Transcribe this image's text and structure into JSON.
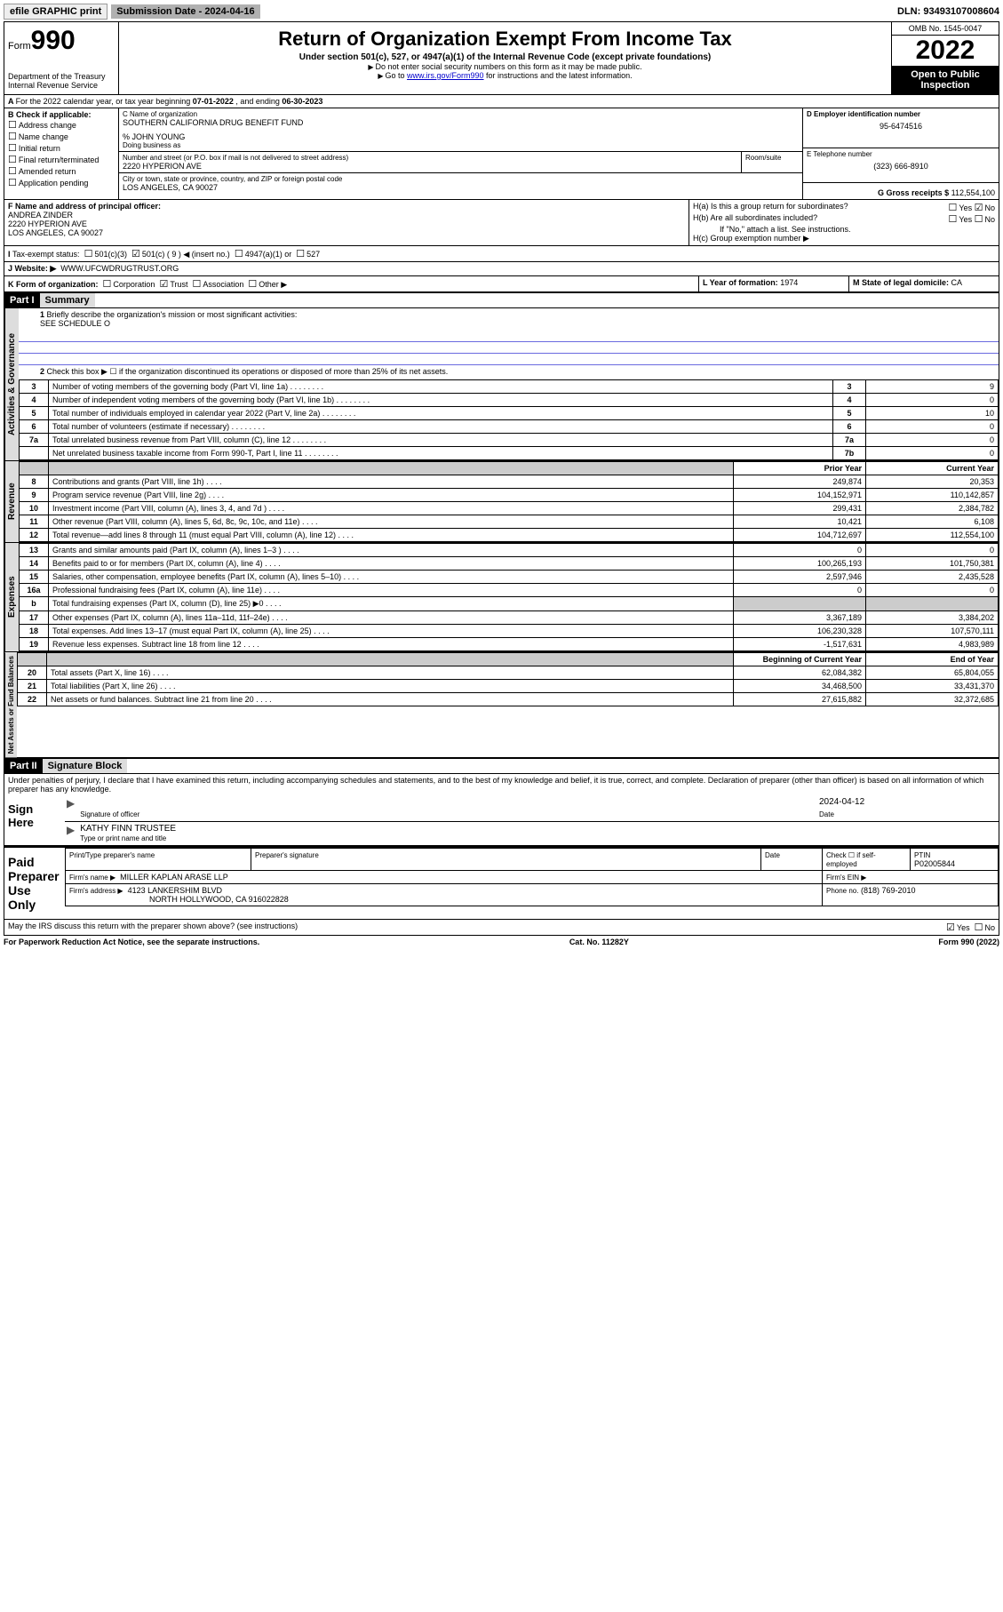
{
  "topbar": {
    "efile": "efile GRAPHIC print",
    "submission": "Submission Date - 2024-04-16",
    "dln": "DLN: 93493107008604"
  },
  "header": {
    "form_prefix": "Form",
    "form_no": "990",
    "title": "Return of Organization Exempt From Income Tax",
    "subtitle": "Under section 501(c), 527, or 4947(a)(1) of the Internal Revenue Code (except private foundations)",
    "note1": "Do not enter social security numbers on this form as it may be made public.",
    "note2_pre": "Go to ",
    "note2_link": "www.irs.gov/Form990",
    "note2_post": " for instructions and the latest information.",
    "dept": "Department of the Treasury\nInternal Revenue Service",
    "omb": "OMB No. 1545-0047",
    "year": "2022",
    "inspect": "Open to Public Inspection"
  },
  "line_a": {
    "text_pre": "For the 2022 calendar year, or tax year beginning ",
    "begin": "07-01-2022",
    "mid": " , and ending ",
    "end": "06-30-2023"
  },
  "box_b": {
    "heading": "B Check if applicable:",
    "opts": [
      "Address change",
      "Name change",
      "Initial return",
      "Final return/terminated",
      "Amended return",
      "Application pending"
    ]
  },
  "box_c": {
    "label": "C Name of organization",
    "name": "SOUTHERN CALIFORNIA DRUG BENEFIT FUND",
    "care_of": "% JOHN YOUNG",
    "dba_label": "Doing business as",
    "addr_label": "Number and street (or P.O. box if mail is not delivered to street address)",
    "room_label": "Room/suite",
    "addr": "2220 HYPERION AVE",
    "city_label": "City or town, state or province, country, and ZIP or foreign postal code",
    "city": "LOS ANGELES, CA  90027"
  },
  "box_d": {
    "label": "D Employer identification number",
    "value": "95-6474516"
  },
  "box_e": {
    "label": "E Telephone number",
    "value": "(323) 666-8910"
  },
  "box_g": {
    "label": "G Gross receipts $",
    "value": "112,554,100"
  },
  "box_f": {
    "label": "F Name and address of principal officer:",
    "name": "ANDREA ZINDER",
    "addr1": "2220 HYPERION AVE",
    "addr2": "LOS ANGELES, CA  90027"
  },
  "box_h": {
    "a_label": "H(a)  Is this a group return for subordinates?",
    "b_label": "H(b)  Are all subordinates included?",
    "b_note": "If \"No,\" attach a list. See instructions.",
    "c_label": "H(c)  Group exemption number ▶",
    "yes": "Yes",
    "no": "No"
  },
  "box_i": {
    "label": "Tax-exempt status:",
    "o1": "501(c)(3)",
    "o2": "501(c) ( 9 ) ◀ (insert no.)",
    "o3": "4947(a)(1) or",
    "o4": "527"
  },
  "box_j": {
    "label": "Website: ▶",
    "value": "WWW.UFCWDRUGTRUST.ORG"
  },
  "box_k": {
    "label": "K Form of organization:",
    "o1": "Corporation",
    "o2": "Trust",
    "o3": "Association",
    "o4": "Other ▶"
  },
  "box_l": {
    "label": "L Year of formation:",
    "value": "1974"
  },
  "box_m": {
    "label": "M State of legal domicile:",
    "value": "CA"
  },
  "part1": {
    "tag": "Part I",
    "title": "Summary",
    "q1": "Briefly describe the organization's mission or most significant activities:",
    "q1v": "SEE SCHEDULE O",
    "q2": "Check this box ▶ ☐  if the organization discontinued its operations or disposed of more than 25% of its net assets.",
    "lines_gov": [
      {
        "n": "3",
        "d": "Number of voting members of the governing body (Part VI, line 1a)",
        "box": "3",
        "v": "9"
      },
      {
        "n": "4",
        "d": "Number of independent voting members of the governing body (Part VI, line 1b)",
        "box": "4",
        "v": "0"
      },
      {
        "n": "5",
        "d": "Total number of individuals employed in calendar year 2022 (Part V, line 2a)",
        "box": "5",
        "v": "10"
      },
      {
        "n": "6",
        "d": "Total number of volunteers (estimate if necessary)",
        "box": "6",
        "v": "0"
      },
      {
        "n": "7a",
        "d": "Total unrelated business revenue from Part VIII, column (C), line 12",
        "box": "7a",
        "v": "0"
      },
      {
        "n": "",
        "d": "Net unrelated business taxable income from Form 990-T, Part I, line 11",
        "box": "7b",
        "v": "0"
      }
    ],
    "colhdr_prior": "Prior Year",
    "colhdr_current": "Current Year",
    "lines_rev": [
      {
        "n": "8",
        "d": "Contributions and grants (Part VIII, line 1h)",
        "p": "249,874",
        "c": "20,353"
      },
      {
        "n": "9",
        "d": "Program service revenue (Part VIII, line 2g)",
        "p": "104,152,971",
        "c": "110,142,857"
      },
      {
        "n": "10",
        "d": "Investment income (Part VIII, column (A), lines 3, 4, and 7d )",
        "p": "299,431",
        "c": "2,384,782"
      },
      {
        "n": "11",
        "d": "Other revenue (Part VIII, column (A), lines 5, 6d, 8c, 9c, 10c, and 11e)",
        "p": "10,421",
        "c": "6,108"
      },
      {
        "n": "12",
        "d": "Total revenue—add lines 8 through 11 (must equal Part VIII, column (A), line 12)",
        "p": "104,712,697",
        "c": "112,554,100"
      }
    ],
    "lines_exp": [
      {
        "n": "13",
        "d": "Grants and similar amounts paid (Part IX, column (A), lines 1–3 )",
        "p": "0",
        "c": "0"
      },
      {
        "n": "14",
        "d": "Benefits paid to or for members (Part IX, column (A), line 4)",
        "p": "100,265,193",
        "c": "101,750,381"
      },
      {
        "n": "15",
        "d": "Salaries, other compensation, employee benefits (Part IX, column (A), lines 5–10)",
        "p": "2,597,946",
        "c": "2,435,528"
      },
      {
        "n": "16a",
        "d": "Professional fundraising fees (Part IX, column (A), line 11e)",
        "p": "0",
        "c": "0"
      },
      {
        "n": "b",
        "d": "Total fundraising expenses (Part IX, column (D), line 25) ▶0",
        "p": "",
        "c": "",
        "shade": true
      },
      {
        "n": "17",
        "d": "Other expenses (Part IX, column (A), lines 11a–11d, 11f–24e)",
        "p": "3,367,189",
        "c": "3,384,202"
      },
      {
        "n": "18",
        "d": "Total expenses. Add lines 13–17 (must equal Part IX, column (A), line 25)",
        "p": "106,230,328",
        "c": "107,570,111"
      },
      {
        "n": "19",
        "d": "Revenue less expenses. Subtract line 18 from line 12",
        "p": "-1,517,631",
        "c": "4,983,989"
      }
    ],
    "colhdr_begin": "Beginning of Current Year",
    "colhdr_end": "End of Year",
    "lines_net": [
      {
        "n": "20",
        "d": "Total assets (Part X, line 16)",
        "p": "62,084,382",
        "c": "65,804,055"
      },
      {
        "n": "21",
        "d": "Total liabilities (Part X, line 26)",
        "p": "34,468,500",
        "c": "33,431,370"
      },
      {
        "n": "22",
        "d": "Net assets or fund balances. Subtract line 21 from line 20",
        "p": "27,615,882",
        "c": "32,372,685"
      }
    ],
    "vtab_gov": "Activities & Governance",
    "vtab_rev": "Revenue",
    "vtab_exp": "Expenses",
    "vtab_net": "Net Assets or Fund Balances"
  },
  "part2": {
    "tag": "Part II",
    "title": "Signature Block",
    "decl": "Under penalties of perjury, I declare that I have examined this return, including accompanying schedules and statements, and to the best of my knowledge and belief, it is true, correct, and complete. Declaration of preparer (other than officer) is based on all information of which preparer has any knowledge.",
    "sign_here": "Sign Here",
    "sig_officer": "Signature of officer",
    "sig_date": "2024-04-12",
    "date_lbl": "Date",
    "officer_name": "KATHY FINN  TRUSTEE",
    "officer_lbl": "Type or print name and title",
    "paid": "Paid Preparer Use Only",
    "pp_name_lbl": "Print/Type preparer's name",
    "pp_sig_lbl": "Preparer's signature",
    "pp_date_lbl": "Date",
    "pp_check": "Check ☐ if self-employed",
    "ptin_lbl": "PTIN",
    "ptin": "P02005844",
    "firm_name_lbl": "Firm's name    ▶",
    "firm_name": "MILLER KAPLAN ARASE LLP",
    "firm_ein_lbl": "Firm's EIN ▶",
    "firm_addr_lbl": "Firm's address ▶",
    "firm_addr1": "4123 LANKERSHIM BLVD",
    "firm_addr2": "NORTH HOLLYWOOD, CA  916022828",
    "phone_lbl": "Phone no.",
    "phone": "(818) 769-2010",
    "discuss": "May the IRS discuss this return with the preparer shown above? (see instructions)",
    "yes": "Yes",
    "no": "No"
  },
  "footer": {
    "left": "For Paperwork Reduction Act Notice, see the separate instructions.",
    "mid": "Cat. No. 11282Y",
    "right": "Form 990 (2022)"
  }
}
